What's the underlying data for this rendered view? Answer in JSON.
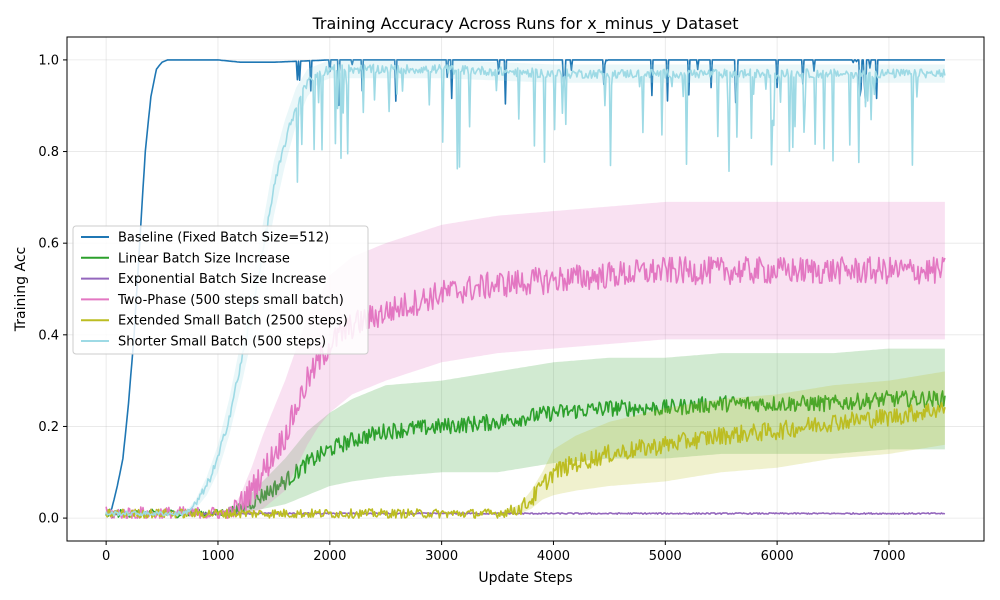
{
  "chart_data": {
    "type": "line",
    "title": "Training Accuracy Across Runs for x_minus_y Dataset",
    "xlabel": "Update Steps",
    "ylabel": "Training Acc",
    "xlim": [
      -350,
      7850
    ],
    "ylim": [
      -0.05,
      1.05
    ],
    "xticks": [
      0,
      1000,
      2000,
      3000,
      4000,
      5000,
      6000,
      7000
    ],
    "yticks": [
      0.0,
      0.2,
      0.4,
      0.6,
      0.8,
      1.0
    ],
    "xtick_labels": [
      "0",
      "1000",
      "2000",
      "3000",
      "4000",
      "5000",
      "6000",
      "7000"
    ],
    "ytick_labels": [
      "0.0",
      "0.2",
      "0.4",
      "0.6",
      "0.8",
      "1.0"
    ],
    "grid": true,
    "legend_position": "center-left",
    "series": [
      {
        "name": "Baseline (Fixed Batch Size=512)",
        "color": "#1f77b4",
        "x": [
          0,
          50,
          100,
          150,
          200,
          250,
          300,
          350,
          400,
          450,
          500,
          550,
          600,
          700,
          800,
          1000,
          1200,
          1500,
          2000,
          3000,
          4000,
          5000,
          6000,
          7000,
          7500
        ],
        "y": [
          0.01,
          0.02,
          0.07,
          0.13,
          0.25,
          0.4,
          0.6,
          0.8,
          0.92,
          0.98,
          0.995,
          1.0,
          1.0,
          1.0,
          1.0,
          1.0,
          0.995,
          0.995,
          1.0,
          1.0,
          1.0,
          1.0,
          1.0,
          1.0,
          1.0
        ]
      },
      {
        "name": "Linear Batch Size Increase",
        "color": "#2ca02c",
        "x": [
          0,
          1000,
          1200,
          1400,
          1600,
          1800,
          2000,
          2200,
          2500,
          3000,
          3500,
          4000,
          4500,
          5000,
          5500,
          6000,
          6500,
          7000,
          7500
        ],
        "y": [
          0.01,
          0.01,
          0.02,
          0.05,
          0.08,
          0.12,
          0.15,
          0.17,
          0.19,
          0.2,
          0.21,
          0.23,
          0.24,
          0.24,
          0.25,
          0.25,
          0.25,
          0.26,
          0.26
        ],
        "band": [
          0.0,
          0.0,
          0.01,
          0.03,
          0.05,
          0.07,
          0.08,
          0.09,
          0.1,
          0.1,
          0.11,
          0.11,
          0.11,
          0.11,
          0.11,
          0.11,
          0.11,
          0.11,
          0.11
        ]
      },
      {
        "name": "Exponential Batch Size Increase",
        "color": "#9467bd",
        "x": [
          0,
          1000,
          2000,
          3000,
          4000,
          5000,
          6000,
          7000,
          7500
        ],
        "y": [
          0.01,
          0.01,
          0.01,
          0.01,
          0.01,
          0.01,
          0.01,
          0.01,
          0.01
        ]
      },
      {
        "name": "Two-Phase (500 steps small batch)",
        "color": "#e377c2",
        "x": [
          0,
          1100,
          1200,
          1300,
          1400,
          1500,
          1600,
          1700,
          1800,
          1900,
          2000,
          2200,
          2500,
          3000,
          3500,
          4000,
          4500,
          5000,
          5500,
          6000,
          6500,
          7000,
          7500
        ],
        "y": [
          0.01,
          0.01,
          0.03,
          0.06,
          0.1,
          0.14,
          0.18,
          0.24,
          0.3,
          0.34,
          0.38,
          0.42,
          0.45,
          0.49,
          0.51,
          0.52,
          0.53,
          0.54,
          0.54,
          0.54,
          0.54,
          0.54,
          0.54
        ],
        "band": [
          0.0,
          0.0,
          0.02,
          0.05,
          0.08,
          0.1,
          0.12,
          0.13,
          0.14,
          0.14,
          0.15,
          0.15,
          0.15,
          0.15,
          0.15,
          0.15,
          0.15,
          0.15,
          0.15,
          0.15,
          0.15,
          0.15,
          0.15
        ]
      },
      {
        "name": "Extended Small Batch (2500 steps)",
        "color": "#bcbd22",
        "x": [
          0,
          2500,
          3000,
          3500,
          3700,
          3800,
          3900,
          4000,
          4200,
          4500,
          5000,
          5500,
          6000,
          6500,
          7000,
          7500
        ],
        "y": [
          0.01,
          0.01,
          0.01,
          0.01,
          0.02,
          0.04,
          0.07,
          0.1,
          0.12,
          0.14,
          0.16,
          0.18,
          0.19,
          0.21,
          0.22,
          0.24
        ],
        "band": [
          0.0,
          0.0,
          0.0,
          0.0,
          0.01,
          0.02,
          0.03,
          0.05,
          0.06,
          0.07,
          0.08,
          0.08,
          0.08,
          0.08,
          0.08,
          0.08
        ]
      },
      {
        "name": "Shorter Small Batch (500 steps)",
        "color": "#9edae5",
        "x": [
          0,
          700,
          800,
          900,
          1000,
          1100,
          1200,
          1300,
          1400,
          1500,
          1600,
          1700,
          1800,
          1900,
          2000,
          2500,
          3000,
          4000,
          5000,
          6000,
          7000,
          7500
        ],
        "y": [
          0.01,
          0.01,
          0.03,
          0.07,
          0.13,
          0.22,
          0.33,
          0.45,
          0.58,
          0.72,
          0.82,
          0.9,
          0.95,
          0.97,
          0.98,
          0.98,
          0.98,
          0.97,
          0.97,
          0.97,
          0.97,
          0.97
        ],
        "band": [
          0.0,
          0.0,
          0.01,
          0.02,
          0.03,
          0.04,
          0.05,
          0.06,
          0.06,
          0.06,
          0.05,
          0.04,
          0.03,
          0.02,
          0.02,
          0.02,
          0.02,
          0.02,
          0.02,
          0.02,
          0.02,
          0.02
        ]
      }
    ]
  }
}
